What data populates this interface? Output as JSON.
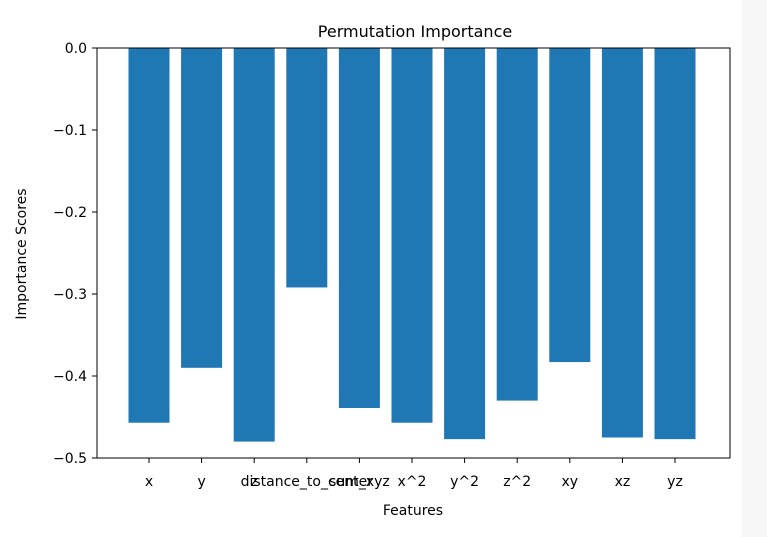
{
  "chart_data": {
    "type": "bar",
    "title": "Permutation Importance",
    "xlabel": "Features",
    "ylabel": "Importance Scores",
    "categories": [
      "x",
      "y",
      "z",
      "distance_to_center",
      "sum_xyz",
      "x^2",
      "y^2",
      "z^2",
      "xy",
      "xz",
      "yz"
    ],
    "values": [
      -0.457,
      -0.39,
      -0.48,
      -0.292,
      -0.439,
      -0.457,
      -0.477,
      -0.43,
      -0.383,
      -0.475,
      -0.477
    ],
    "ylim": [
      -0.5,
      0.0
    ],
    "yticks": [
      "0.0",
      "−0.1",
      "−0.2",
      "−0.3",
      "−0.4",
      "−0.5"
    ],
    "ytick_values": [
      0.0,
      -0.1,
      -0.2,
      -0.3,
      -0.4,
      -0.5
    ],
    "bar_color": "#1f77b4",
    "grid": false
  }
}
